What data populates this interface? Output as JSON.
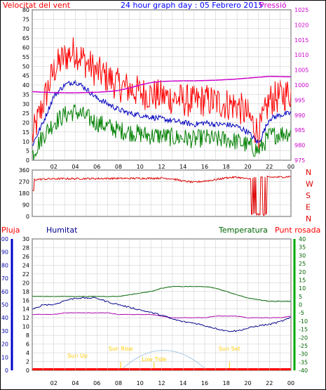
{
  "title": "24 hour graph day : 05 Febrero 2015",
  "colors": {
    "wind": "#ff0000",
    "wind_avg": "#0000c0",
    "wind_green": "#008000",
    "pressure": "#cc00cc",
    "direction": "#dd0000",
    "rain": "#ff0000",
    "humidity": "#00008b",
    "temperature": "#006400",
    "dewpoint": "#aa00aa",
    "sun": "#ffcc00",
    "sun_arc": "#a8c8e8",
    "grid": "#c8c8c8",
    "frame": "#000000"
  },
  "x_ticks": [
    "02",
    "04",
    "06",
    "08",
    "10",
    "12",
    "14",
    "16",
    "18",
    "20",
    "22",
    "00"
  ],
  "chart_data": [
    {
      "type": "line",
      "label_left": "Velocitat del vent",
      "label_right": "Pressió",
      "y_ticks": [
        "0",
        "5",
        "10",
        "15",
        "20",
        "25",
        "30",
        "35",
        "40",
        "45",
        "50",
        "55",
        "60",
        "65",
        "70",
        "75",
        "80"
      ],
      "y2_ticks": [
        "975",
        "980",
        "985",
        "990",
        "995",
        "1000",
        "1005",
        "1010",
        "1015",
        "1020",
        "1025"
      ],
      "ylim": [
        0,
        80
      ],
      "y2lim": [
        975,
        1025
      ],
      "x_hours": [
        0,
        1,
        2,
        3,
        4,
        5,
        6,
        7,
        8,
        9,
        10,
        11,
        12,
        13,
        14,
        15,
        16,
        17,
        18,
        19,
        20,
        21,
        22,
        23,
        24
      ],
      "series": [
        {
          "key": "gust",
          "axis": "left",
          "values": [
            12,
            30,
            48,
            55,
            58,
            52,
            47,
            44,
            40,
            38,
            36,
            35,
            34,
            33,
            32,
            31,
            32,
            31,
            30,
            29,
            24,
            14,
            32,
            34,
            36
          ]
        },
        {
          "key": "avg",
          "axis": "left",
          "values": [
            8,
            20,
            34,
            40,
            42,
            38,
            33,
            30,
            27,
            25,
            24,
            23,
            22,
            21,
            20,
            19,
            20,
            19,
            19,
            18,
            15,
            9,
            22,
            24,
            25
          ]
        },
        {
          "key": "low",
          "axis": "left",
          "values": [
            3,
            13,
            20,
            24,
            26,
            23,
            20,
            18,
            16,
            15,
            14,
            13,
            13,
            12,
            12,
            11,
            12,
            11,
            11,
            10,
            8,
            5,
            13,
            14,
            15
          ]
        },
        {
          "key": "pressure",
          "axis": "right",
          "values": [
            997.8,
            997.6,
            997.5,
            997.4,
            997.4,
            997.5,
            997.6,
            997.8,
            998.2,
            999.0,
            1000.0,
            1000.8,
            1001.2,
            1001.3,
            1001.4,
            1001.4,
            1001.5,
            1001.6,
            1001.8,
            1002.0,
            1002.3,
            1002.6,
            1002.9,
            1002.8,
            1002.7
          ]
        }
      ]
    },
    {
      "type": "scatter",
      "y_ticks": [
        "0",
        "90",
        "180",
        "270",
        "360"
      ],
      "y2_ticks": [
        "N",
        "W",
        "S",
        "E",
        "N"
      ],
      "ylim": [
        0,
        360
      ],
      "x_hours": [
        0,
        1,
        2,
        3,
        4,
        5,
        6,
        7,
        8,
        9,
        10,
        11,
        12,
        13,
        14,
        15,
        16,
        17,
        18,
        19,
        20,
        21,
        22,
        23,
        24
      ],
      "series": [
        {
          "key": "direction",
          "values": [
            285,
            290,
            292,
            293,
            293,
            294,
            294,
            295,
            295,
            295,
            296,
            296,
            298,
            292,
            275,
            265,
            275,
            285,
            300,
            305,
            290,
            310,
            305,
            305,
            310
          ]
        }
      ]
    },
    {
      "type": "line",
      "label_rain": "Pluja",
      "label_humidity": "Humitat",
      "label_temperature": "Temperatura",
      "label_dewpoint": "Punt rosada",
      "rain_ticks": [
        "0",
        "10",
        "20",
        "30",
        "40",
        "50",
        "60",
        "70",
        "80",
        "90",
        "100"
      ],
      "humidity_ticks": [
        "0",
        "2",
        "4",
        "6",
        "8",
        "10",
        "12",
        "14",
        "16",
        "18",
        "20",
        "22",
        "24",
        "26",
        "28",
        "30"
      ],
      "temp_ticks": [
        "-40",
        "-35",
        "-30",
        "-25",
        "-20",
        "-15",
        "-10",
        "-5",
        "0",
        "5",
        "10",
        "15",
        "20",
        "25",
        "30",
        "35",
        "40"
      ],
      "temp_lim": [
        -40,
        40
      ],
      "hum_lim": [
        0,
        100
      ],
      "sun_labels": {
        "rise": "Sun Rise",
        "set": "Sun Set",
        "up": "Sun Up",
        "low": "Low Tide"
      },
      "sun_hours": {
        "rise": 8.2,
        "set": 18.3,
        "up": 4.2,
        "low": 11.3
      },
      "x_hours": [
        0,
        1,
        2,
        3,
        4,
        5,
        6,
        7,
        8,
        9,
        10,
        11,
        12,
        13,
        14,
        15,
        16,
        17,
        18,
        19,
        20,
        21,
        22,
        23,
        24
      ],
      "series": [
        {
          "key": "temperature",
          "axis": "temp",
          "values": [
            5,
            5,
            5,
            5,
            5,
            5,
            5,
            5,
            5,
            6,
            7,
            8,
            10,
            11,
            11,
            11,
            11,
            10,
            8,
            6,
            4,
            3,
            2,
            2,
            2
          ]
        },
        {
          "key": "dewpoint",
          "axis": "temp",
          "values": [
            -6,
            -6,
            -6,
            -5,
            -5,
            -5,
            -5,
            -5,
            -6,
            -6,
            -6,
            -6,
            -7,
            -8,
            -8,
            -8,
            -8,
            -7,
            -7,
            -7,
            -8,
            -8,
            -8,
            -8,
            -7
          ]
        },
        {
          "key": "humidity",
          "axis": "hum",
          "values": [
            46,
            50,
            50,
            53,
            55,
            55,
            55,
            52,
            50,
            48,
            46,
            44,
            42,
            39,
            37,
            36,
            34,
            32,
            30,
            30,
            32,
            34,
            35,
            37,
            40
          ]
        },
        {
          "key": "rain",
          "axis": "hum",
          "values": [
            0,
            0,
            0,
            0,
            0,
            0,
            0,
            0,
            0,
            0,
            0,
            0,
            0,
            0,
            0,
            0,
            0,
            0,
            0,
            0,
            0,
            0,
            0,
            0,
            0
          ]
        }
      ]
    }
  ]
}
